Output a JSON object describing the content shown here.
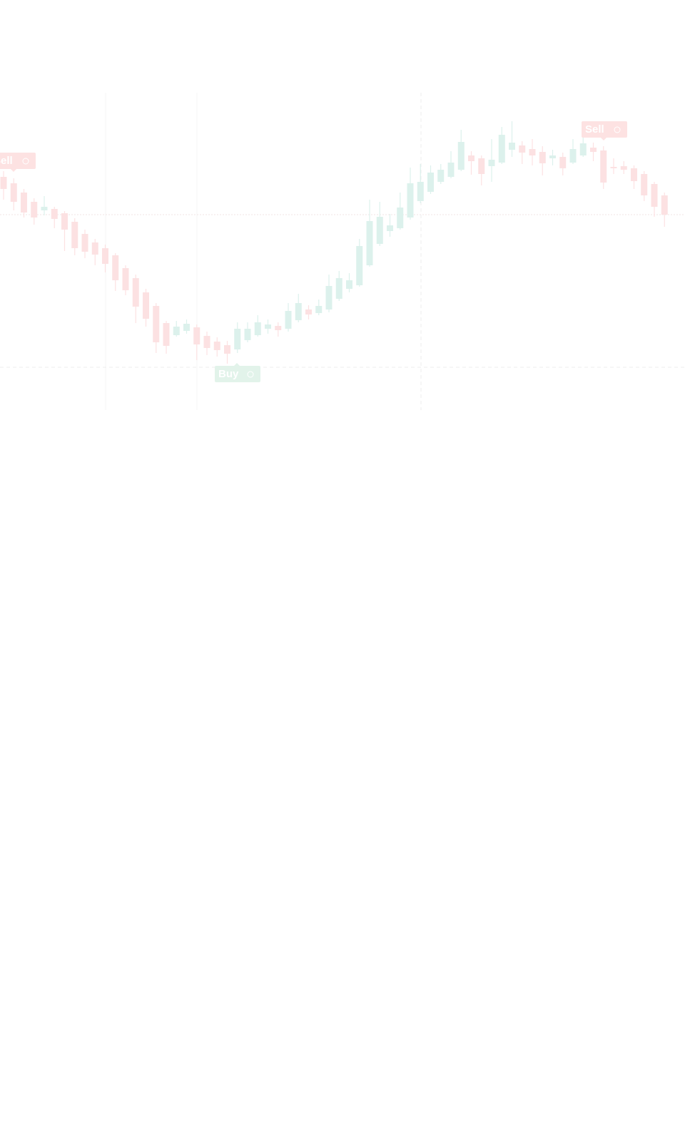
{
  "chart_data": {
    "type": "candlestick",
    "ylim": [
      0,
      600
    ],
    "up_color": "#dcf1ec",
    "down_color": "#fce1e2",
    "categories": [
      null,
      null,
      null,
      null,
      null,
      null,
      null,
      null,
      null,
      null,
      null,
      null,
      null,
      null,
      null,
      null,
      null,
      null,
      null,
      null,
      null,
      null,
      null,
      null,
      null,
      null,
      null,
      null,
      null,
      null,
      null,
      null,
      null,
      null,
      null,
      null,
      null,
      null,
      null,
      null,
      null,
      null,
      null,
      null,
      null,
      null,
      null,
      null,
      null,
      null,
      null,
      null,
      null,
      null,
      null,
      null,
      null,
      null,
      null,
      null,
      null,
      null,
      null,
      null,
      null,
      null
    ],
    "open": [
      352,
      343,
      330,
      317,
      305,
      307,
      301,
      289,
      272,
      260,
      252,
      242,
      224,
      210,
      190,
      171,
      147,
      130,
      136,
      141,
      129,
      121,
      116,
      110,
      123,
      130,
      139,
      143,
      139,
      151,
      166,
      161,
      166,
      181,
      195,
      200,
      228,
      258,
      276,
      280,
      295,
      318,
      331,
      345,
      352,
      362,
      382,
      378,
      367,
      372,
      390,
      396,
      391,
      387,
      378,
      380,
      372,
      382,
      393,
      389,
      366,
      367,
      364,
      356,
      342,
      326
    ],
    "high": [
      360,
      350,
      335,
      322,
      325,
      310,
      304,
      294,
      278,
      265,
      257,
      245,
      228,
      215,
      195,
      175,
      150,
      150,
      152,
      145,
      135,
      127,
      122,
      148,
      148,
      158,
      152,
      148,
      175,
      188,
      172,
      180,
      215,
      220,
      217,
      265,
      320,
      317,
      300,
      330,
      365,
      370,
      368,
      370,
      388,
      418,
      388,
      382,
      405,
      422,
      430,
      402,
      405,
      395,
      390,
      386,
      405,
      410,
      400,
      395,
      378,
      374,
      368,
      360,
      345,
      330
    ],
    "low": [
      320,
      305,
      295,
      285,
      298,
      280,
      248,
      242,
      238,
      228,
      218,
      192,
      186,
      147,
      142,
      105,
      104,
      128,
      132,
      95,
      102,
      100,
      90,
      105,
      120,
      128,
      132,
      128,
      135,
      148,
      152,
      158,
      162,
      178,
      190,
      198,
      226,
      255,
      268,
      278,
      292,
      315,
      328,
      342,
      350,
      360,
      355,
      340,
      345,
      370,
      380,
      370,
      368,
      354,
      368,
      354,
      370,
      380,
      374,
      335,
      356,
      356,
      335,
      318,
      296,
      282
    ],
    "close": [
      335,
      317,
      302,
      295,
      310,
      293,
      278,
      252,
      247,
      243,
      230,
      207,
      193,
      170,
      153,
      120,
      115,
      142,
      146,
      117,
      112,
      109,
      104,
      139,
      139,
      148,
      145,
      137,
      164,
      175,
      159,
      171,
      199,
      210,
      207,
      255,
      290,
      296,
      284,
      309,
      343,
      345,
      358,
      362,
      372,
      401,
      374,
      356,
      376,
      411,
      400,
      386,
      382,
      371,
      382,
      364,
      391,
      399,
      387,
      344,
      364,
      362,
      346,
      326,
      310,
      299
    ],
    "annotations": [
      "Sell",
      "Buy",
      "Sell"
    ]
  }
}
